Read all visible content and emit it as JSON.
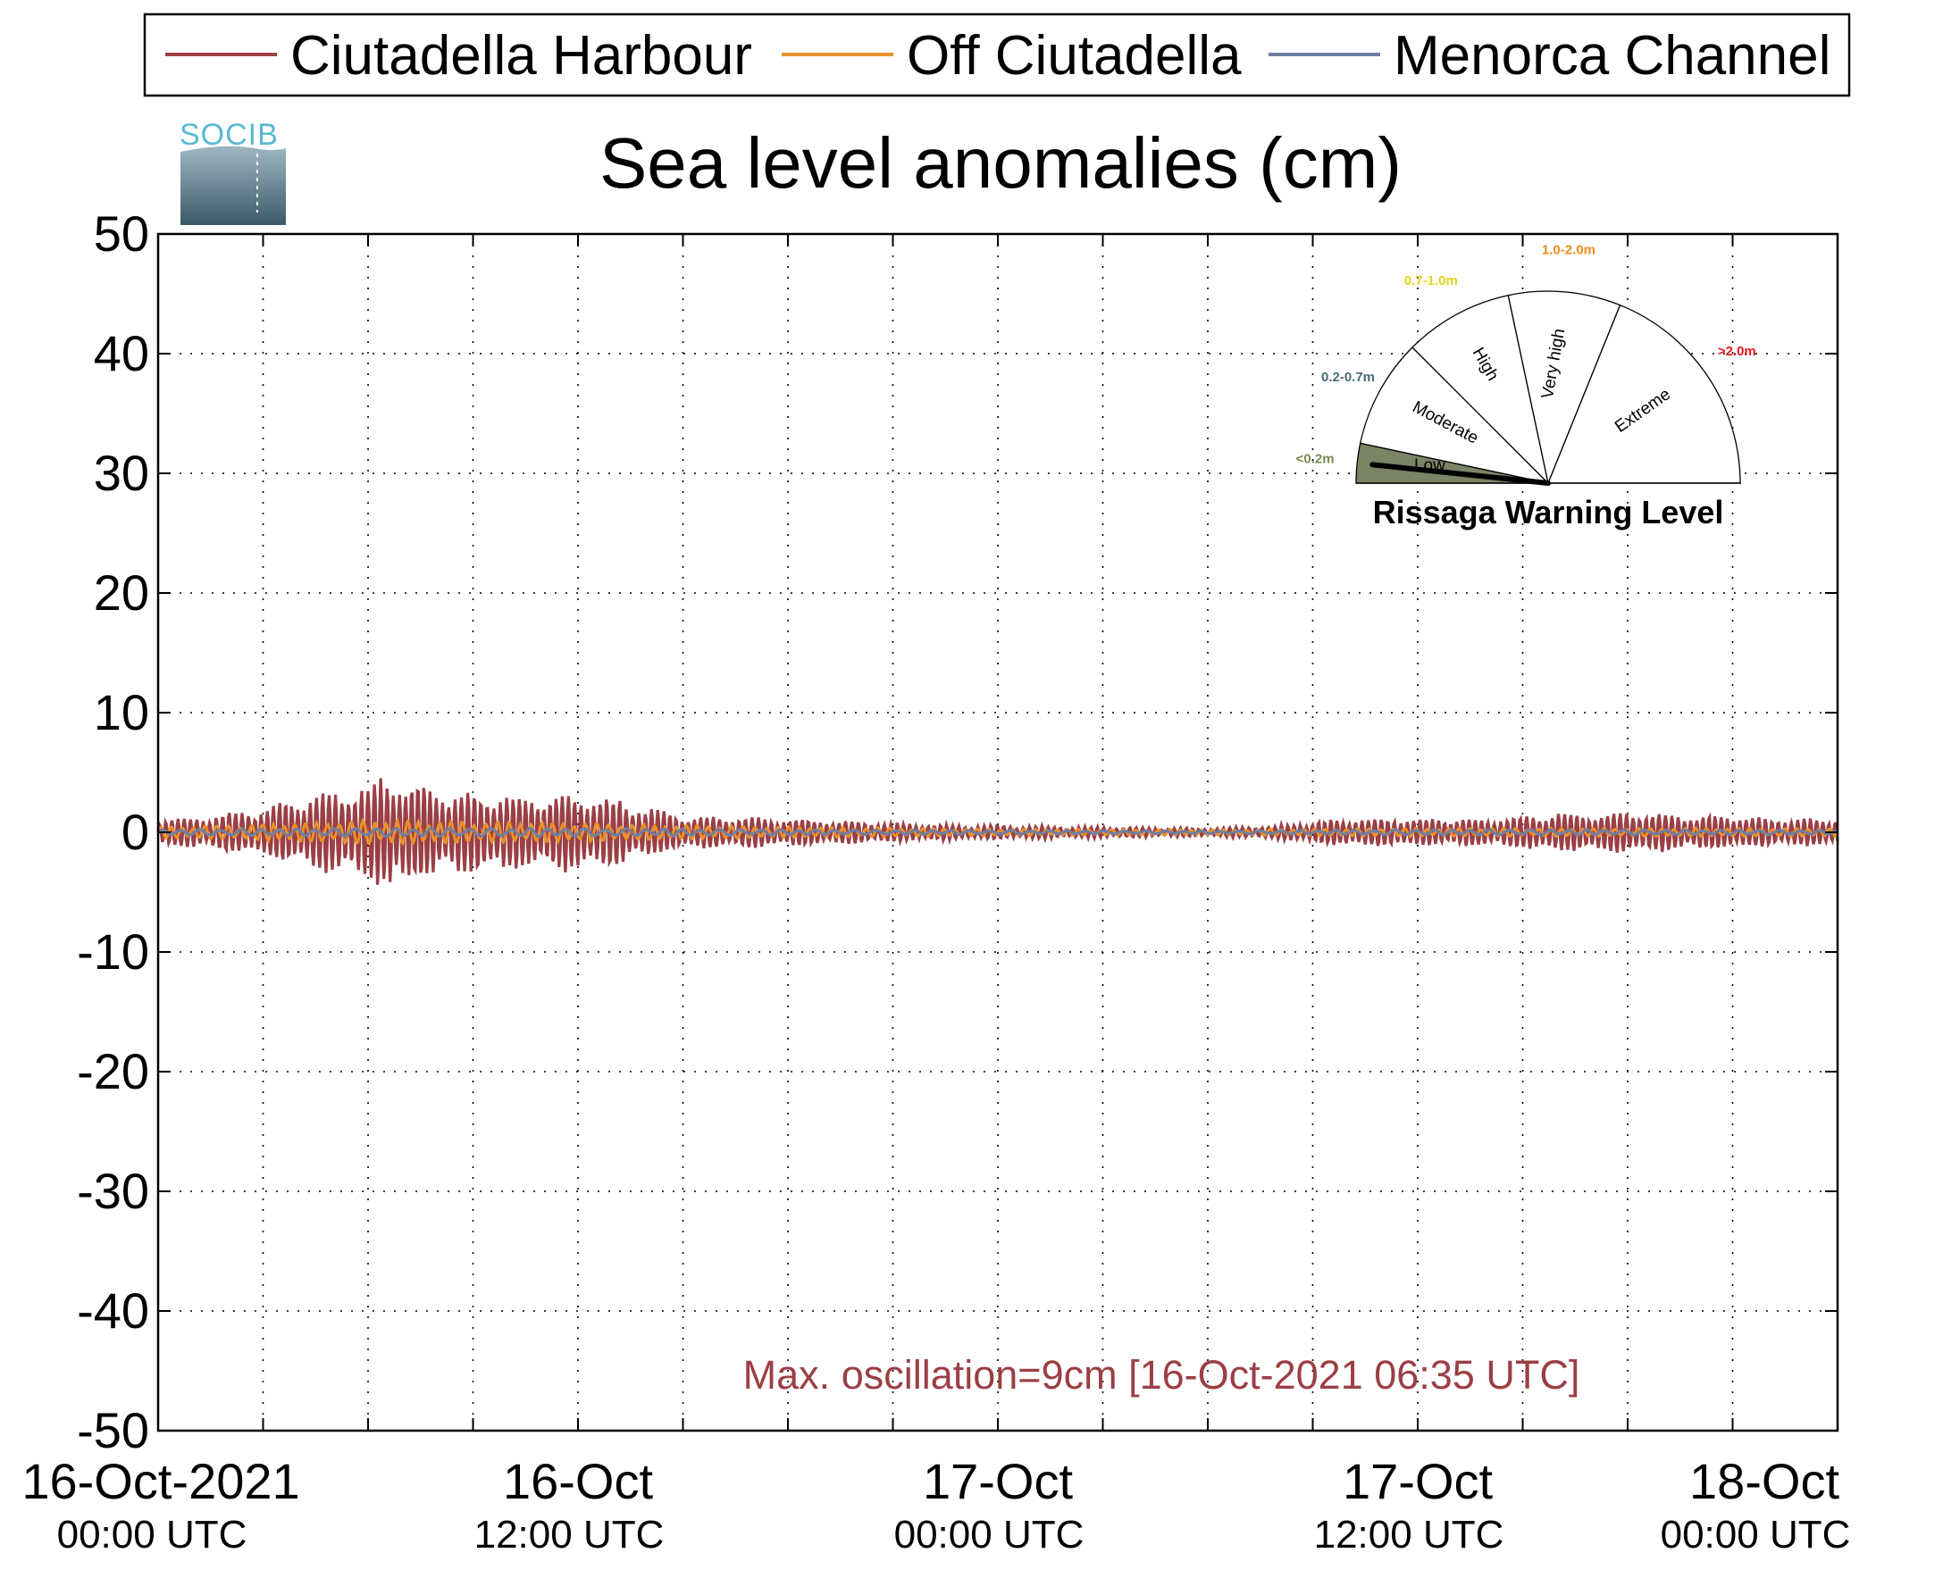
{
  "chart_data": {
    "type": "line",
    "title": "Sea level anomalies (cm)",
    "ylim": [
      -50,
      50
    ],
    "yticks": [
      50,
      40,
      30,
      20,
      10,
      0,
      -10,
      -20,
      -30,
      -40,
      -50
    ],
    "x_range_hours": [
      0,
      48
    ],
    "x_grid_step_hours": 3,
    "xticks": [
      {
        "hour": 0,
        "date": "16-Oct-2021",
        "time": "00:00 UTC"
      },
      {
        "hour": 12,
        "date": "16-Oct",
        "time": "12:00 UTC"
      },
      {
        "hour": 24,
        "date": "17-Oct",
        "time": "00:00 UTC"
      },
      {
        "hour": 36,
        "date": "17-Oct",
        "time": "12:00 UTC"
      },
      {
        "hour": 48,
        "date": "18-Oct",
        "time": "00:00 UTC"
      }
    ],
    "grid": true,
    "legend_position": "top",
    "series": [
      {
        "name": "Ciutadella Harbour",
        "color": "#9b3f45",
        "envelope_hours": [
          0,
          1.5,
          3,
          4,
          5,
          6,
          6.6,
          7,
          8,
          9,
          10,
          11,
          12,
          13,
          14,
          15,
          16,
          18,
          20,
          22,
          24,
          27,
          30,
          32,
          33,
          34,
          35,
          36,
          37,
          38,
          39,
          40,
          41,
          42,
          43,
          44,
          45,
          46,
          47,
          48
        ],
        "envelope_amp_cm": [
          1.0,
          1.2,
          1.8,
          2.5,
          3.0,
          3.5,
          4.5,
          3.8,
          3.2,
          3.0,
          2.8,
          2.8,
          2.8,
          2.5,
          1.8,
          1.2,
          1.2,
          1.0,
          0.8,
          0.6,
          0.5,
          0.4,
          0.3,
          0.5,
          0.8,
          1.0,
          1.0,
          1.0,
          1.0,
          1.0,
          1.2,
          1.4,
          1.4,
          1.5,
          1.4,
          1.2,
          1.2,
          1.0,
          1.0,
          1.0
        ]
      },
      {
        "name": "Off Ciutadella",
        "color": "#e8912c",
        "envelope_hours": [
          0,
          3,
          6,
          9,
          12,
          15,
          18,
          24,
          30,
          36,
          42,
          48
        ],
        "envelope_amp_cm": [
          0.4,
          0.6,
          0.9,
          0.8,
          0.7,
          0.5,
          0.4,
          0.25,
          0.2,
          0.3,
          0.3,
          0.3
        ]
      },
      {
        "name": "Menorca Channel",
        "color": "#6e7fa4",
        "envelope_hours": [
          0,
          6,
          12,
          18,
          24,
          30,
          36,
          42,
          48
        ],
        "envelope_amp_cm": [
          0.2,
          0.3,
          0.3,
          0.2,
          0.15,
          0.1,
          0.2,
          0.2,
          0.15
        ]
      }
    ],
    "annotation": "Max. oscillation=9cm [16-Oct-2021 06:35 UTC]",
    "annotation_color": "#9b3f45"
  },
  "logo": {
    "text": "SOCIB"
  },
  "warning_gauge": {
    "title": "Rissaga Warning Level",
    "needle_level": "Low",
    "sectors": [
      {
        "label": "Low",
        "range": "<0.2m",
        "range_color": "#7a8a52",
        "fill": "#7c8466"
      },
      {
        "label": "Moderate",
        "range": "0.2-0.7m",
        "range_color": "#4b6a78",
        "fill": "#ffffff"
      },
      {
        "label": "High",
        "range": "0.7-1.0m",
        "range_color": "#e8d31c",
        "fill": "#ffffff"
      },
      {
        "label": "Very high",
        "range": "1.0-2.0m",
        "range_color": "#f08a1c",
        "fill": "#ffffff"
      },
      {
        "label": "Extreme",
        "range": ">2.0m",
        "range_color": "#e01a1a",
        "fill": "#ffffff"
      }
    ]
  }
}
